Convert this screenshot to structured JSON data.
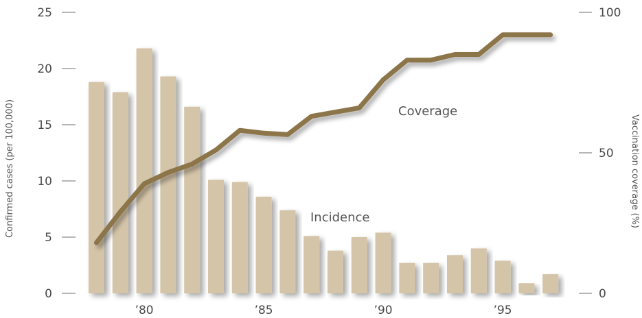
{
  "chart_data": {
    "type": "bar",
    "years": [
      1978,
      1979,
      1980,
      1981,
      1982,
      1983,
      1984,
      1985,
      1986,
      1987,
      1988,
      1989,
      1990,
      1991,
      1992,
      1993,
      1994,
      1995,
      1996,
      1997
    ],
    "x_tick_labels": [
      {
        "year": 1980,
        "label": "’80"
      },
      {
        "year": 1985,
        "label": "’85"
      },
      {
        "year": 1990,
        "label": "’90"
      },
      {
        "year": 1995,
        "label": "’95"
      }
    ],
    "series": [
      {
        "name": "Incidence",
        "kind": "bar",
        "axis": "left",
        "color": "#d4c4a8",
        "values": [
          18.8,
          17.9,
          21.8,
          19.3,
          16.6,
          10.1,
          9.9,
          8.6,
          7.4,
          5.1,
          3.8,
          5.0,
          5.4,
          2.7,
          2.7,
          3.4,
          4.0,
          2.9,
          0.9,
          1.7
        ]
      },
      {
        "name": "Coverage",
        "kind": "line",
        "axis": "right",
        "color": "#8c7548",
        "values": [
          18,
          29,
          39,
          43,
          46,
          51,
          58,
          57,
          56.5,
          63,
          64.5,
          66,
          76,
          83,
          83,
          85,
          85,
          92,
          92,
          92
        ]
      }
    ],
    "y_left": {
      "label": "Confirmed cases (per 100,000)",
      "lim": [
        0,
        25
      ],
      "ticks": [
        0,
        5,
        10,
        15,
        20,
        25
      ]
    },
    "y_right": {
      "label": "Vaccination coverage (%)",
      "lim": [
        0,
        100
      ],
      "ticks": [
        0,
        50,
        100
      ]
    },
    "annotations": [
      {
        "text": "Coverage",
        "series": "Coverage"
      },
      {
        "text": "Incidence",
        "series": "Incidence"
      }
    ],
    "grid": false,
    "legend": "none"
  }
}
